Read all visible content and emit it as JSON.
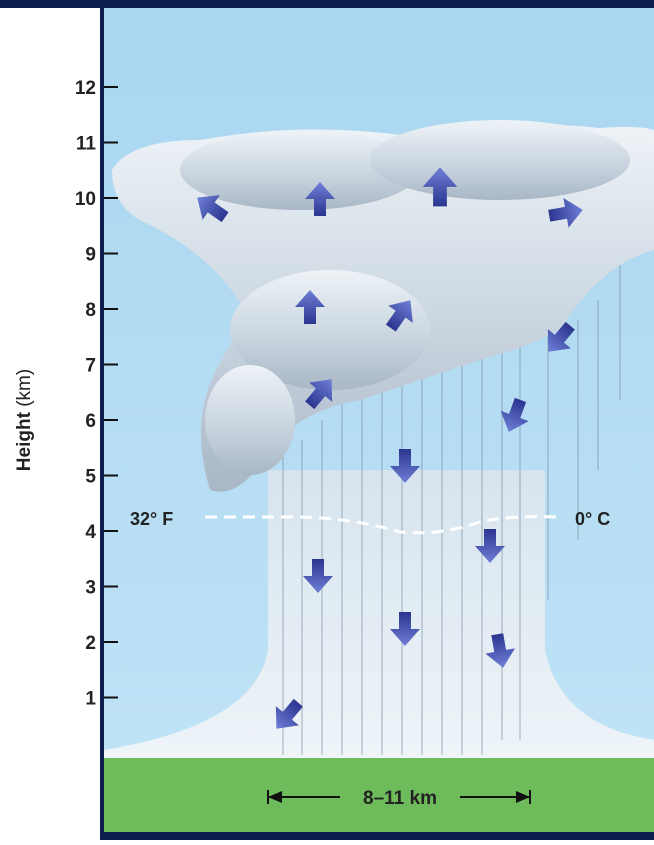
{
  "axis": {
    "title": "Height",
    "unit": "(km)",
    "ticks": [
      1,
      2,
      3,
      4,
      5,
      6,
      7,
      8,
      9,
      10,
      11,
      12
    ]
  },
  "freezing_level": {
    "left_label": "32° F",
    "right_label": "0° C"
  },
  "width_label": "8–11 km"
}
